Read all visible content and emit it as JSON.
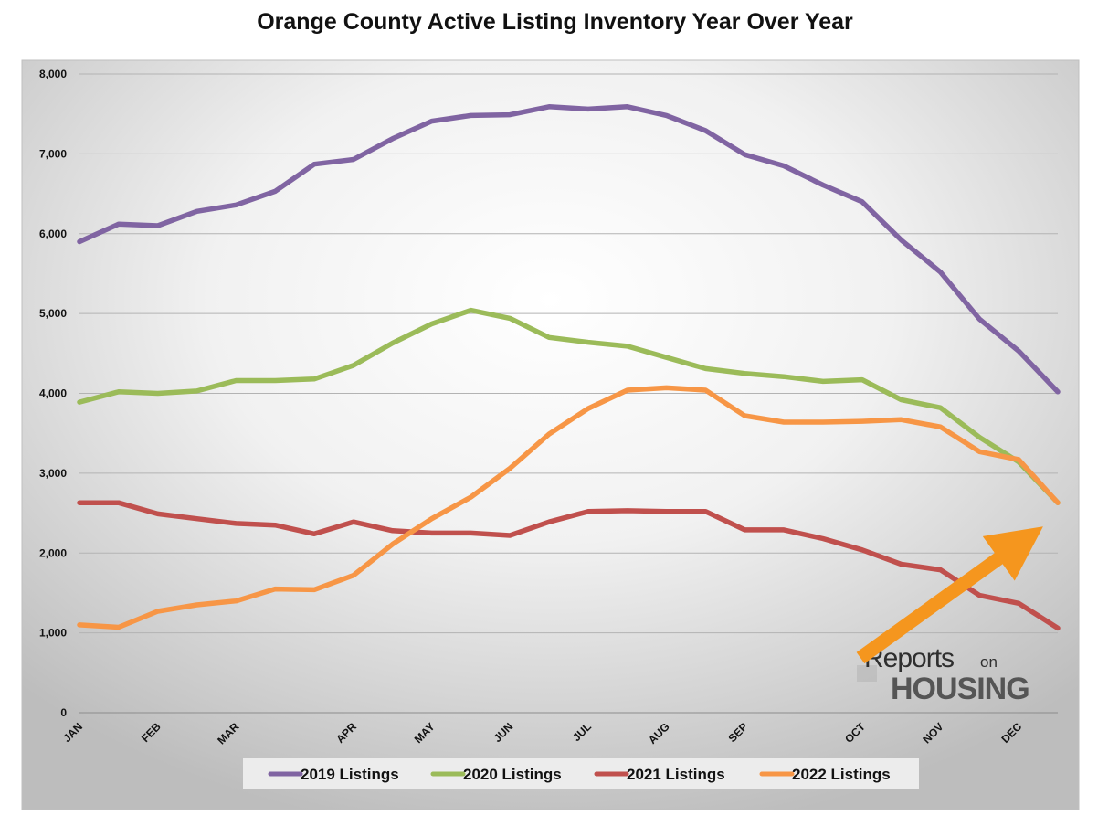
{
  "chart_data": {
    "type": "line",
    "title": "Orange County Active Listing Inventory Year Over Year",
    "xlabel": "",
    "ylabel": "",
    "ylim": [
      0,
      8000
    ],
    "yticks": [
      0,
      1000,
      2000,
      3000,
      4000,
      5000,
      6000,
      7000,
      8000
    ],
    "ytick_labels": [
      "0",
      "1,000",
      "2,000",
      "3,000",
      "4,000",
      "5,000",
      "6,000",
      "7,000",
      "8,000"
    ],
    "x_count": 26,
    "month_labels": [
      {
        "label": "JAN",
        "index": 0
      },
      {
        "label": "FEB",
        "index": 2
      },
      {
        "label": "MAR",
        "index": 4
      },
      {
        "label": "APR",
        "index": 7
      },
      {
        "label": "MAY",
        "index": 9
      },
      {
        "label": "JUN",
        "index": 11
      },
      {
        "label": "JUL",
        "index": 13
      },
      {
        "label": "AUG",
        "index": 15
      },
      {
        "label": "SEP",
        "index": 17
      },
      {
        "label": "OCT",
        "index": 20
      },
      {
        "label": "NOV",
        "index": 22
      },
      {
        "label": "DEC",
        "index": 24
      }
    ],
    "legend_position": "bottom",
    "grid": true,
    "series": [
      {
        "name": "2019 Listings",
        "color": "#8064a2",
        "values": [
          5900,
          6120,
          6100,
          6280,
          6360,
          6530,
          6870,
          6930,
          7190,
          7410,
          7480,
          7490,
          7590,
          7560,
          7590,
          7480,
          7290,
          6990,
          6850,
          6610,
          6400,
          5920,
          5520,
          4930,
          4530,
          4020
        ]
      },
      {
        "name": "2020 Listings",
        "color": "#9bbb59",
        "values": [
          3890,
          4020,
          4000,
          4030,
          4160,
          4160,
          4180,
          4350,
          4630,
          4870,
          5040,
          4940,
          4700,
          4640,
          4590,
          4450,
          4310,
          4250,
          4210,
          4150,
          4170,
          3920,
          3820,
          3450,
          3140,
          2630
        ]
      },
      {
        "name": "2021 Listings",
        "color": "#c0504d",
        "values": [
          2630,
          2630,
          2490,
          2430,
          2370,
          2350,
          2240,
          2390,
          2280,
          2250,
          2250,
          2220,
          2390,
          2520,
          2530,
          2520,
          2520,
          2290,
          2290,
          2180,
          2040,
          1860,
          1790,
          1470,
          1370,
          1060
        ]
      },
      {
        "name": "2022 Listings",
        "color": "#f79646",
        "values": [
          1100,
          1070,
          1270,
          1350,
          1400,
          1550,
          1540,
          1720,
          2110,
          2430,
          2700,
          3060,
          3490,
          3810,
          4040,
          4070,
          4040,
          3720,
          3640,
          3640,
          3650,
          3670,
          3580,
          3270,
          3170,
          2630
        ]
      }
    ]
  },
  "watermark": {
    "reports": "Reports",
    "on": "on",
    "housing": "HOUSING"
  },
  "annotation": {
    "arrow_color": "#f5961e"
  }
}
